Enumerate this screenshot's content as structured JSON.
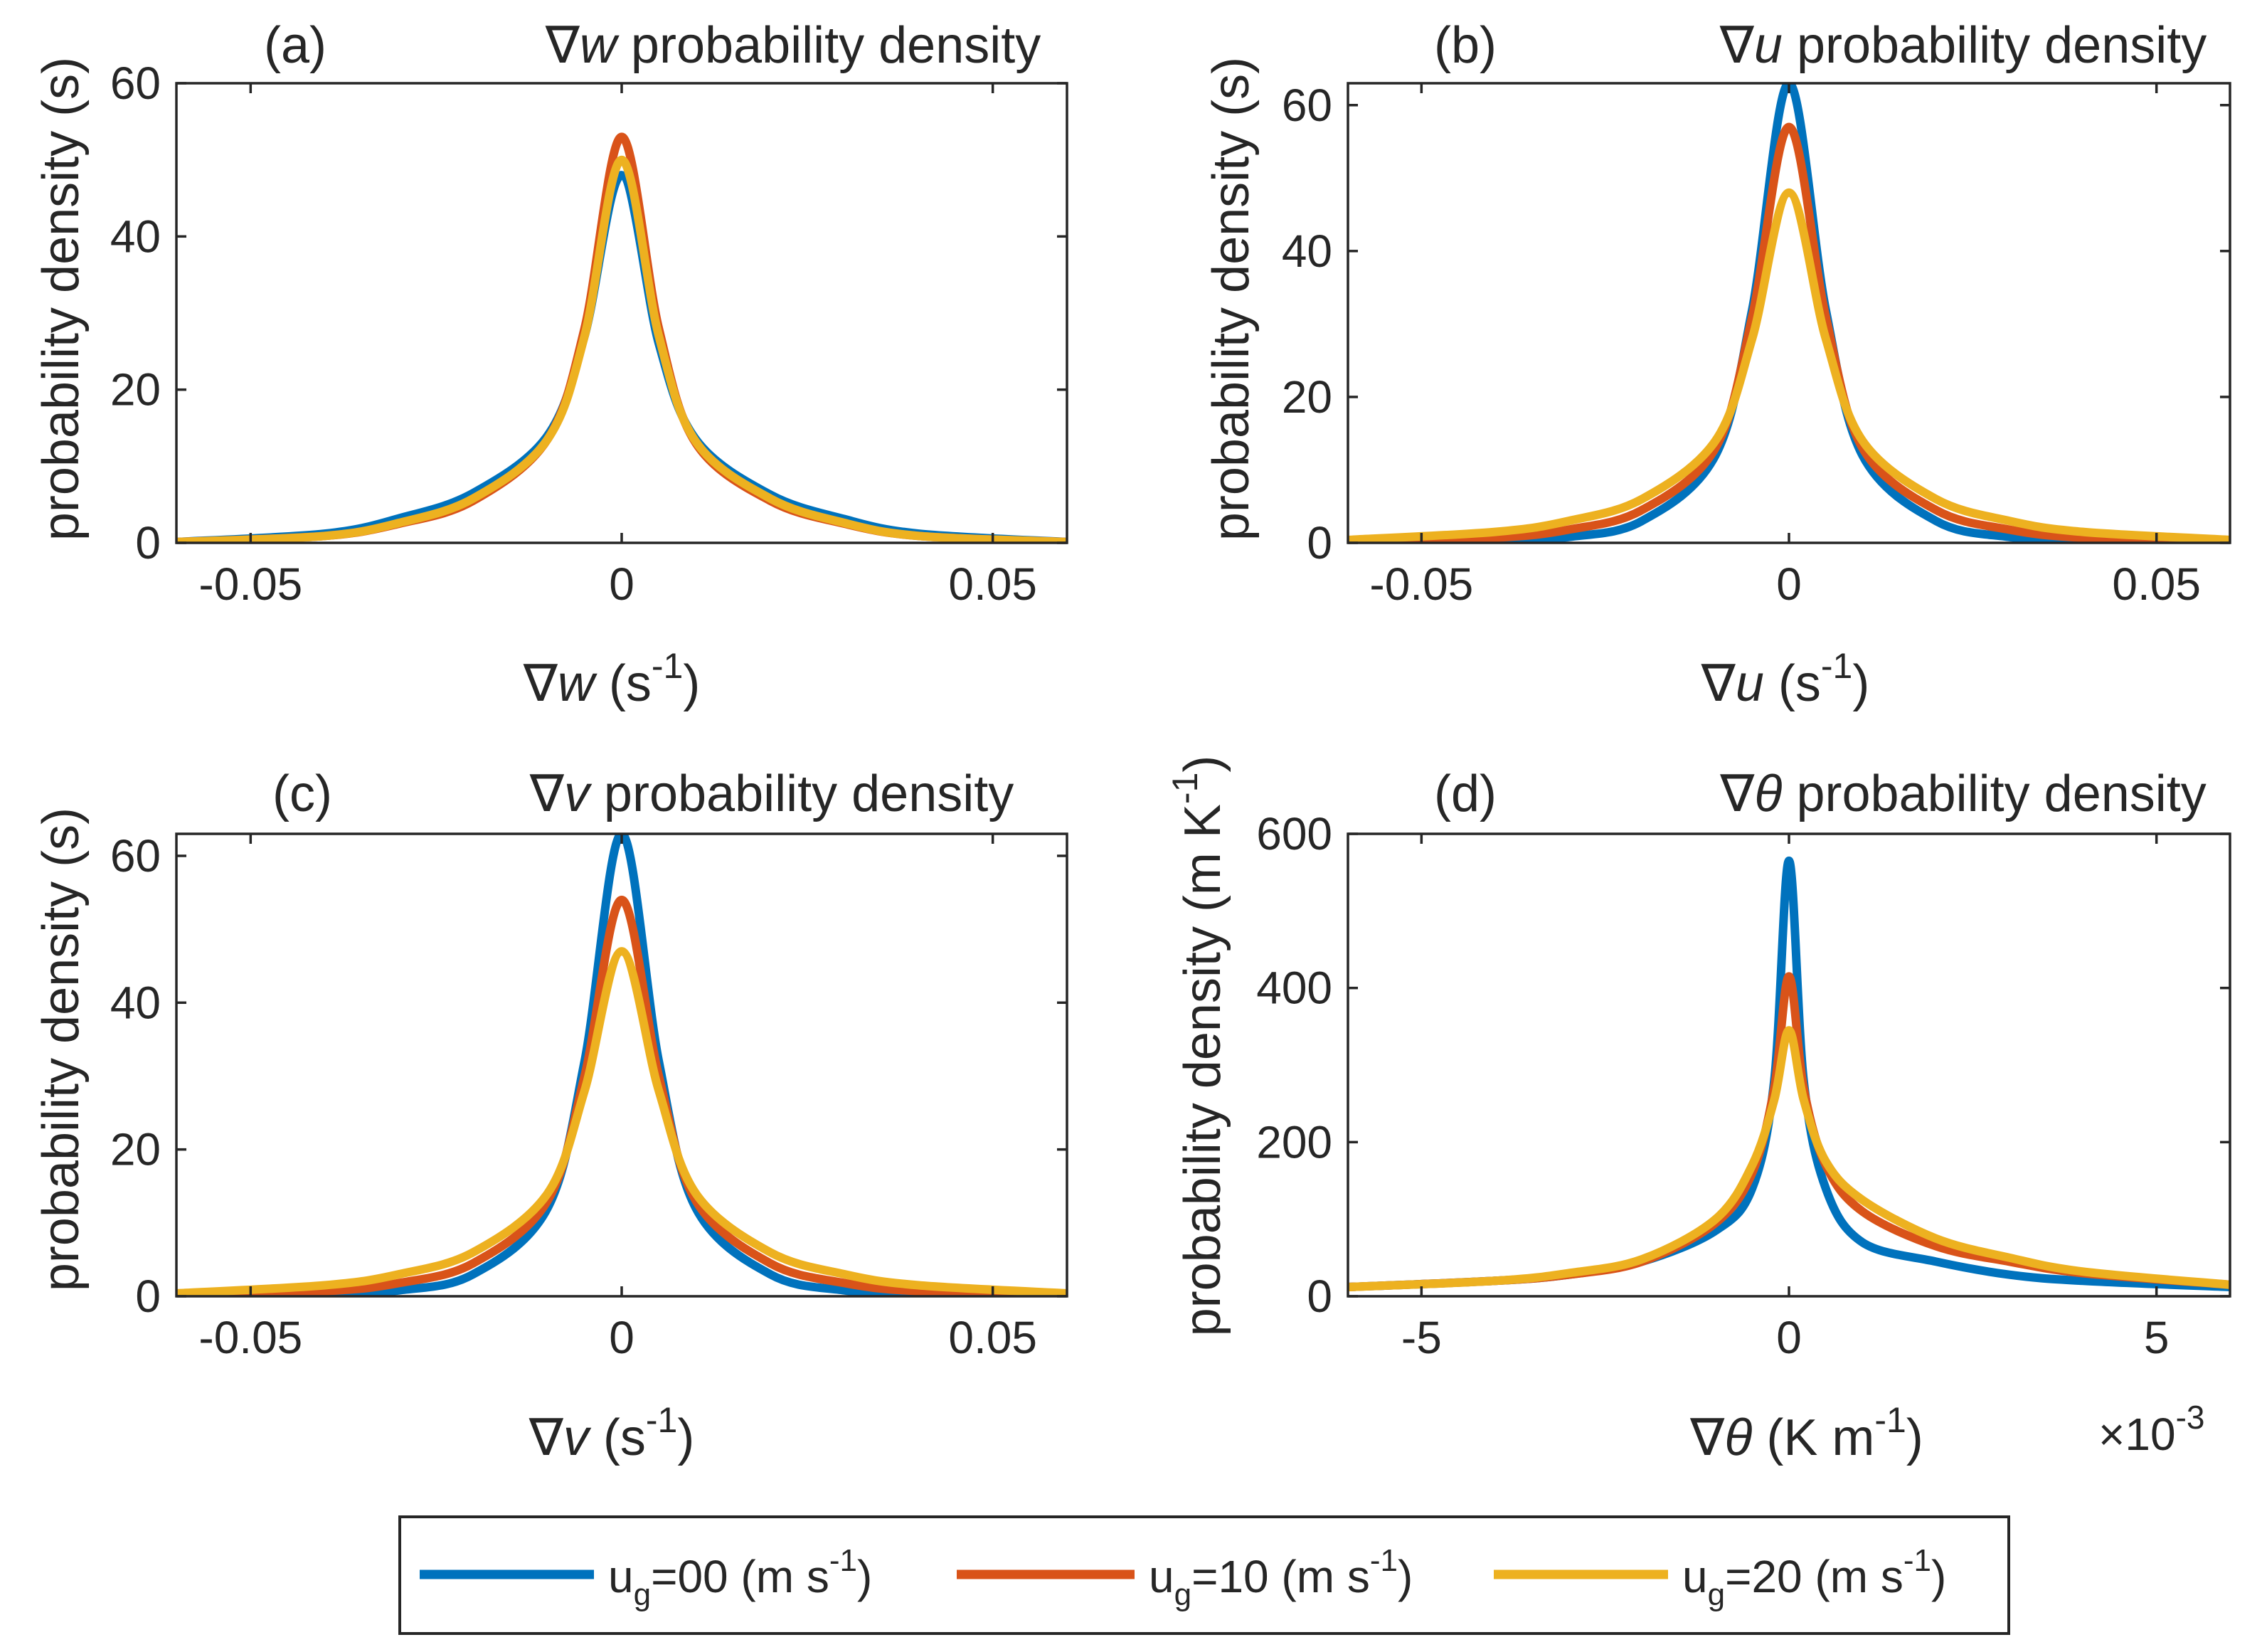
{
  "colors": {
    "s0": "#0072BD",
    "s10": "#D95319",
    "s20": "#EDB120",
    "axis": "#262626"
  },
  "legend": {
    "items": [
      {
        "pre": "u",
        "sub": "g",
        "mid": "=00 (m s",
        "sup": "-1",
        "post": ")"
      },
      {
        "pre": "u",
        "sub": "g",
        "mid": "=10 (m s",
        "sup": "-1",
        "post": ")"
      },
      {
        "pre": "u",
        "sub": "g",
        "mid": "=20 (m s",
        "sup": "-1",
        "post": ")"
      }
    ]
  },
  "chart_data": [
    {
      "type": "line",
      "panel": "(a)",
      "title": {
        "sym": "∇",
        "var": "w",
        "rest": " probability density"
      },
      "xlabel": {
        "sym": "∇",
        "var": "w",
        "unit": " (s",
        "sup": "-1",
        "close": ")"
      },
      "ylabel": "probability density (s)",
      "xlim": [
        -0.06,
        0.06
      ],
      "ylim": [
        0,
        60
      ],
      "xticks": [
        -0.05,
        0,
        0.05
      ],
      "xtick_labels": [
        "-0.05",
        "0",
        "0.05"
      ],
      "yticks": [
        0,
        20,
        40,
        60
      ],
      "ytick_labels": [
        "0",
        "20",
        "40",
        "60"
      ],
      "grid": false,
      "series": [
        {
          "name": "u_g=00 (m s^-1)",
          "x": [
            -0.06,
            -0.04,
            -0.03,
            -0.02,
            -0.01,
            -0.005,
            0,
            0.005,
            0.01,
            0.02,
            0.03,
            0.04,
            0.06
          ],
          "values": [
            0.1,
            1.2,
            3.2,
            6.5,
            14,
            27,
            48,
            26,
            13.5,
            6.3,
            3.1,
            1.2,
            0.1
          ]
        },
        {
          "name": "u_g=10 (m s^-1)",
          "x": [
            -0.06,
            -0.04,
            -0.03,
            -0.02,
            -0.01,
            -0.005,
            0,
            0.005,
            0.01,
            0.02,
            0.03,
            0.04,
            0.06
          ],
          "values": [
            0.1,
            0.9,
            2.5,
            5.5,
            13.5,
            28,
            53,
            28,
            13,
            5.5,
            2.5,
            0.9,
            0.1
          ]
        },
        {
          "name": "u_g=20 (m s^-1)",
          "x": [
            -0.06,
            -0.04,
            -0.03,
            -0.02,
            -0.01,
            -0.005,
            0,
            0.005,
            0.01,
            0.02,
            0.03,
            0.04,
            0.06
          ],
          "values": [
            0.1,
            0.9,
            2.6,
            5.8,
            13.5,
            27,
            50,
            27,
            13.2,
            5.8,
            2.6,
            0.9,
            0.1
          ]
        }
      ]
    },
    {
      "type": "line",
      "panel": "(b)",
      "title": {
        "sym": "∇",
        "var": "u",
        "rest": " probability density"
      },
      "xlabel": {
        "sym": "∇",
        "var": "u",
        "unit": " (s",
        "sup": "-1",
        "close": ")"
      },
      "ylabel": "probability density (s)",
      "xlim": [
        -0.06,
        0.06
      ],
      "ylim": [
        0,
        63
      ],
      "xticks": [
        -0.05,
        0,
        0.05
      ],
      "xtick_labels": [
        "-0.05",
        "0",
        "0.05"
      ],
      "yticks": [
        0,
        20,
        40,
        60
      ],
      "ytick_labels": [
        "0",
        "20",
        "40",
        "60"
      ],
      "grid": false,
      "series": [
        {
          "name": "u_g=00 (m s^-1)",
          "x": [
            -0.06,
            -0.04,
            -0.03,
            -0.02,
            -0.01,
            -0.005,
            0,
            0.005,
            0.01,
            0.02,
            0.03,
            0.04,
            0.06
          ],
          "values": [
            0,
            0.2,
            0.8,
            3,
            12,
            32,
            63,
            32,
            12,
            3,
            0.8,
            0.2,
            0
          ]
        },
        {
          "name": "u_g=10 (m s^-1)",
          "x": [
            -0.06,
            -0.04,
            -0.03,
            -0.02,
            -0.01,
            -0.005,
            0,
            0.005,
            0.01,
            0.02,
            0.03,
            0.04,
            0.06
          ],
          "values": [
            0.1,
            0.7,
            1.8,
            4.5,
            13,
            31,
            57,
            31,
            13,
            4.5,
            1.8,
            0.7,
            0.1
          ]
        },
        {
          "name": "u_g=20 (m s^-1)",
          "x": [
            -0.06,
            -0.04,
            -0.03,
            -0.02,
            -0.01,
            -0.005,
            0,
            0.005,
            0.01,
            0.02,
            0.03,
            0.04,
            0.06
          ],
          "values": [
            0.4,
            1.5,
            3,
            6,
            14,
            28,
            48,
            28,
            14,
            6,
            3,
            1.5,
            0.4
          ]
        }
      ]
    },
    {
      "type": "line",
      "panel": "(c)",
      "title": {
        "sym": "∇",
        "var": "v",
        "rest": " probability density"
      },
      "xlabel": {
        "sym": "∇",
        "var": "v",
        "unit": " (s",
        "sup": "-1",
        "close": ")"
      },
      "ylabel": "probability density (s)",
      "xlim": [
        -0.06,
        0.06
      ],
      "ylim": [
        0,
        63
      ],
      "xticks": [
        -0.05,
        0,
        0.05
      ],
      "xtick_labels": [
        "-0.05",
        "0",
        "0.05"
      ],
      "yticks": [
        0,
        20,
        40,
        60
      ],
      "ytick_labels": [
        "0",
        "20",
        "40",
        "60"
      ],
      "grid": false,
      "series": [
        {
          "name": "u_g=00 (m s^-1)",
          "x": [
            -0.06,
            -0.04,
            -0.03,
            -0.02,
            -0.01,
            -0.005,
            0,
            0.005,
            0.01,
            0.02,
            0.03,
            0.04,
            0.06
          ],
          "values": [
            0,
            0.2,
            0.8,
            3,
            12,
            32,
            63,
            32,
            12,
            3,
            0.8,
            0.2,
            0
          ]
        },
        {
          "name": "u_g=10 (m s^-1)",
          "x": [
            -0.06,
            -0.04,
            -0.03,
            -0.02,
            -0.01,
            -0.005,
            0,
            0.005,
            0.01,
            0.02,
            0.03,
            0.04,
            0.06
          ],
          "values": [
            0.1,
            0.7,
            1.8,
            4.5,
            13,
            30,
            54,
            30,
            13,
            4.5,
            1.8,
            0.7,
            0.1
          ]
        },
        {
          "name": "u_g=20 (m s^-1)",
          "x": [
            -0.06,
            -0.04,
            -0.03,
            -0.02,
            -0.01,
            -0.005,
            0,
            0.005,
            0.01,
            0.02,
            0.03,
            0.04,
            0.06
          ],
          "values": [
            0.4,
            1.5,
            3,
            6,
            14,
            28,
            47,
            28,
            14,
            6,
            3,
            1.5,
            0.4
          ]
        }
      ]
    },
    {
      "type": "line",
      "panel": "(d)",
      "title": {
        "sym": "∇",
        "var": "θ",
        "rest": " probability density"
      },
      "xlabel": {
        "sym": "∇",
        "var": "θ",
        "unit": " (K m",
        "sup": "-1",
        "close": ")"
      },
      "ylabel": "probability density (m K",
      "ylabel_sup": "-1",
      "ylabel_close": ")",
      "xlim": [
        -6,
        6
      ],
      "ylim": [
        0,
        600
      ],
      "x_multiplier": {
        "base": "×10",
        "exp": "-3"
      },
      "xticks": [
        -5,
        0,
        5
      ],
      "xtick_labels": [
        "-5",
        "0",
        "5"
      ],
      "yticks": [
        0,
        200,
        400,
        600
      ],
      "ytick_labels": [
        "0",
        "200",
        "400",
        "600"
      ],
      "grid": false,
      "series": [
        {
          "name": "u_g=00 (m s^-1)",
          "x": [
            -6,
            -4,
            -3,
            -2,
            -1,
            -0.5,
            -0.2,
            0,
            0.2,
            0.5,
            1,
            2,
            3,
            4,
            6
          ],
          "values": [
            12,
            20,
            28,
            45,
            85,
            140,
            280,
            565,
            280,
            140,
            70,
            45,
            28,
            20,
            12
          ]
        },
        {
          "name": "u_g=10 (m s^-1)",
          "x": [
            -6,
            -4,
            -3,
            -2,
            -1,
            -0.5,
            -0.2,
            0,
            0.2,
            0.5,
            1,
            2,
            3,
            4,
            6
          ],
          "values": [
            12,
            20,
            28,
            45,
            95,
            160,
            270,
            415,
            270,
            170,
            110,
            65,
            45,
            30,
            15
          ]
        },
        {
          "name": "u_g=20 (m s^-1)",
          "x": [
            -6,
            -4,
            -3,
            -2,
            -1,
            -0.5,
            -0.2,
            0,
            0.2,
            0.5,
            1,
            2,
            3,
            4,
            6
          ],
          "values": [
            12,
            20,
            30,
            48,
            100,
            170,
            255,
            345,
            255,
            175,
            125,
            75,
            50,
            32,
            15
          ]
        }
      ]
    }
  ]
}
